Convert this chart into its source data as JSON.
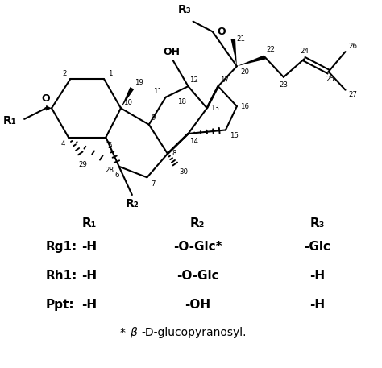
{
  "background_color": "#ffffff",
  "fig_width": 4.74,
  "fig_height": 4.57,
  "dpi": 100,
  "table_rows": [
    [
      "Rg1:",
      "-H",
      "-O-Glc*",
      "-Glc"
    ],
    [
      "Rh1:",
      "-H",
      "-O-Glc",
      "-H"
    ],
    [
      "Ppt:",
      "-H",
      "-OH",
      "-H"
    ]
  ],
  "text_color": "#000000"
}
